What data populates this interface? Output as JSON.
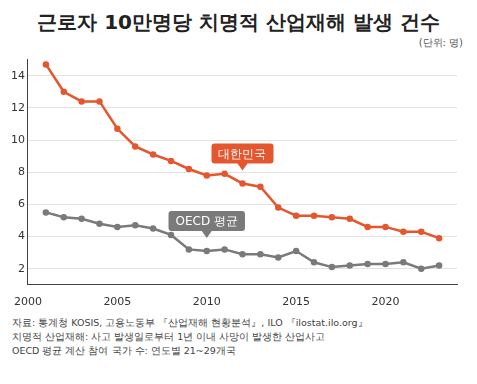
{
  "chart_data": {
    "type": "line",
    "title": "근로자 10만명당 치명적 산업재해 발생 건수",
    "subtitle": "(단위: 명)",
    "notes": [
      "자료: 통계청 KOSIS, 고용노동부 『산업재해 현황분석』, ILO 『ilostat.ilo.org』",
      "치명적 산업재해: 사고 발생일로부터 1년 이내 사망이 발생한 산업사고",
      "OECD 평균 계산 참여 국가 수: 연도별 21~29개국"
    ],
    "x": [
      2001,
      2002,
      2003,
      2004,
      2005,
      2006,
      2007,
      2008,
      2009,
      2010,
      2011,
      2012,
      2013,
      2014,
      2015,
      2016,
      2017,
      2018,
      2019,
      2020,
      2021,
      2022,
      2023
    ],
    "series": [
      {
        "name": "대한민국",
        "color": "#e4572e",
        "marker": "circle",
        "line_style": "solid",
        "values": [
          14.7,
          13.0,
          12.4,
          12.4,
          10.7,
          9.6,
          9.1,
          8.7,
          8.2,
          7.8,
          7.9,
          7.3,
          7.1,
          5.8,
          5.3,
          5.3,
          5.2,
          5.1,
          4.6,
          4.6,
          4.3,
          4.3,
          3.9
        ]
      },
      {
        "name": "OECD 평균",
        "color": "#7a7a7a",
        "marker": "circle",
        "line_style": "solid",
        "values": [
          5.5,
          5.2,
          5.1,
          4.8,
          4.6,
          4.7,
          4.5,
          4.1,
          3.2,
          3.1,
          3.2,
          2.9,
          2.9,
          2.7,
          3.1,
          2.4,
          2.1,
          2.2,
          2.3,
          2.3,
          2.4,
          2.0,
          2.2
        ]
      }
    ],
    "xlim": [
      2000,
      2024
    ],
    "xticks": [
      2000,
      2005,
      2010,
      2015,
      2020
    ],
    "ylim": [
      1,
      15
    ],
    "yticks": [
      2,
      4,
      6,
      8,
      10,
      12,
      14
    ],
    "grid": true
  }
}
